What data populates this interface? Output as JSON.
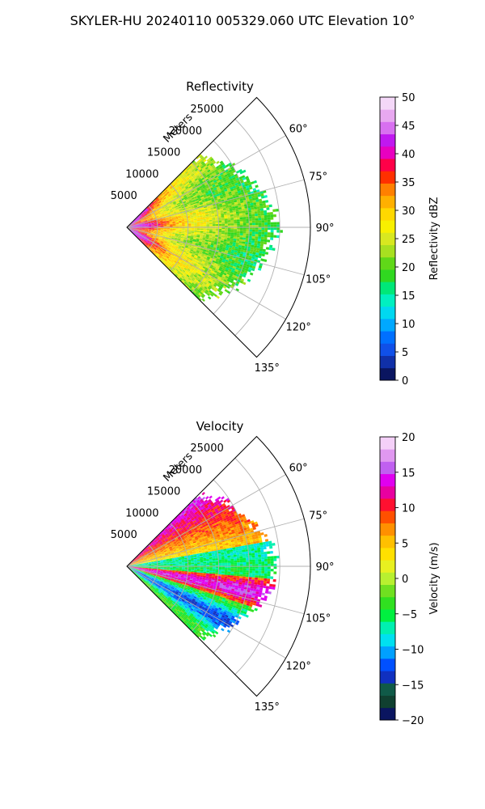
{
  "figure": {
    "title": "SKYLER-HU  20240110  005329.060 UTC Elevation 10°"
  },
  "chart_data": [
    {
      "type": "heatmap",
      "subtype": "radar-sector-ppi",
      "title": "Reflectivity",
      "radial_label": "Meters",
      "radial_ticks": [
        "5000",
        "10000",
        "15000",
        "20000",
        "25000"
      ],
      "radial_tick_values": [
        5000,
        10000,
        15000,
        20000,
        25000
      ],
      "azimuth_ticks": [
        "60°",
        "75°",
        "90°",
        "105°",
        "120°",
        "135°"
      ],
      "azimuth_tick_values": [
        60,
        75,
        90,
        105,
        120,
        135
      ],
      "azimuth_range_deg": [
        45,
        135
      ],
      "range_max_m": 30000,
      "grid": true,
      "field": "reflectivity",
      "colorbar": {
        "label": "Reflectivity dBZ",
        "range": [
          0,
          50
        ],
        "ticks": [
          "0",
          "5",
          "10",
          "15",
          "20",
          "25",
          "30",
          "35",
          "40",
          "45",
          "50"
        ],
        "tick_values": [
          0,
          5,
          10,
          15,
          20,
          25,
          30,
          35,
          40,
          45,
          50
        ],
        "colors": [
          "#0a1560",
          "#1030a8",
          "#1050e8",
          "#0070ff",
          "#00a8ff",
          "#00d8f0",
          "#00f0c0",
          "#00e878",
          "#30d820",
          "#60d818",
          "#a8e020",
          "#d8e820",
          "#f8f000",
          "#ffd800",
          "#ffb000",
          "#ff8000",
          "#ff3000",
          "#ff0048",
          "#e800c0",
          "#c018f0",
          "#d870f0",
          "#e8a8f0",
          "#f4d8f8"
        ]
      }
    },
    {
      "type": "heatmap",
      "subtype": "radar-sector-ppi",
      "title": "Velocity",
      "radial_label": "Meters",
      "radial_ticks": [
        "5000",
        "10000",
        "15000",
        "20000",
        "25000"
      ],
      "radial_tick_values": [
        5000,
        10000,
        15000,
        20000,
        25000
      ],
      "azimuth_ticks": [
        "60°",
        "75°",
        "90°",
        "105°",
        "120°",
        "135°"
      ],
      "azimuth_tick_values": [
        60,
        75,
        90,
        105,
        120,
        135
      ],
      "azimuth_range_deg": [
        45,
        135
      ],
      "range_max_m": 30000,
      "grid": true,
      "field": "radial_velocity",
      "colorbar": {
        "label": "Velocity (m/s)",
        "range": [
          -20,
          20
        ],
        "ticks": [
          "−20",
          "−15",
          "−10",
          "−5",
          "0",
          "5",
          "10",
          "15",
          "20"
        ],
        "tick_values": [
          -20,
          -15,
          -10,
          -5,
          0,
          5,
          10,
          15,
          20
        ],
        "colors": [
          "#0a1560",
          "#104030",
          "#105a48",
          "#1030c0",
          "#0050ff",
          "#00a0ff",
          "#00e0f0",
          "#00f0b0",
          "#00f040",
          "#30e020",
          "#70e020",
          "#b8f030",
          "#e8f020",
          "#ffe000",
          "#ffc000",
          "#ff9000",
          "#ff5000",
          "#ff1030",
          "#e800a0",
          "#e000f0",
          "#c060f0",
          "#e098f0",
          "#f4d0f8"
        ]
      }
    }
  ],
  "colors": {
    "grid": "#b0b0b0",
    "spine": "#000000"
  }
}
